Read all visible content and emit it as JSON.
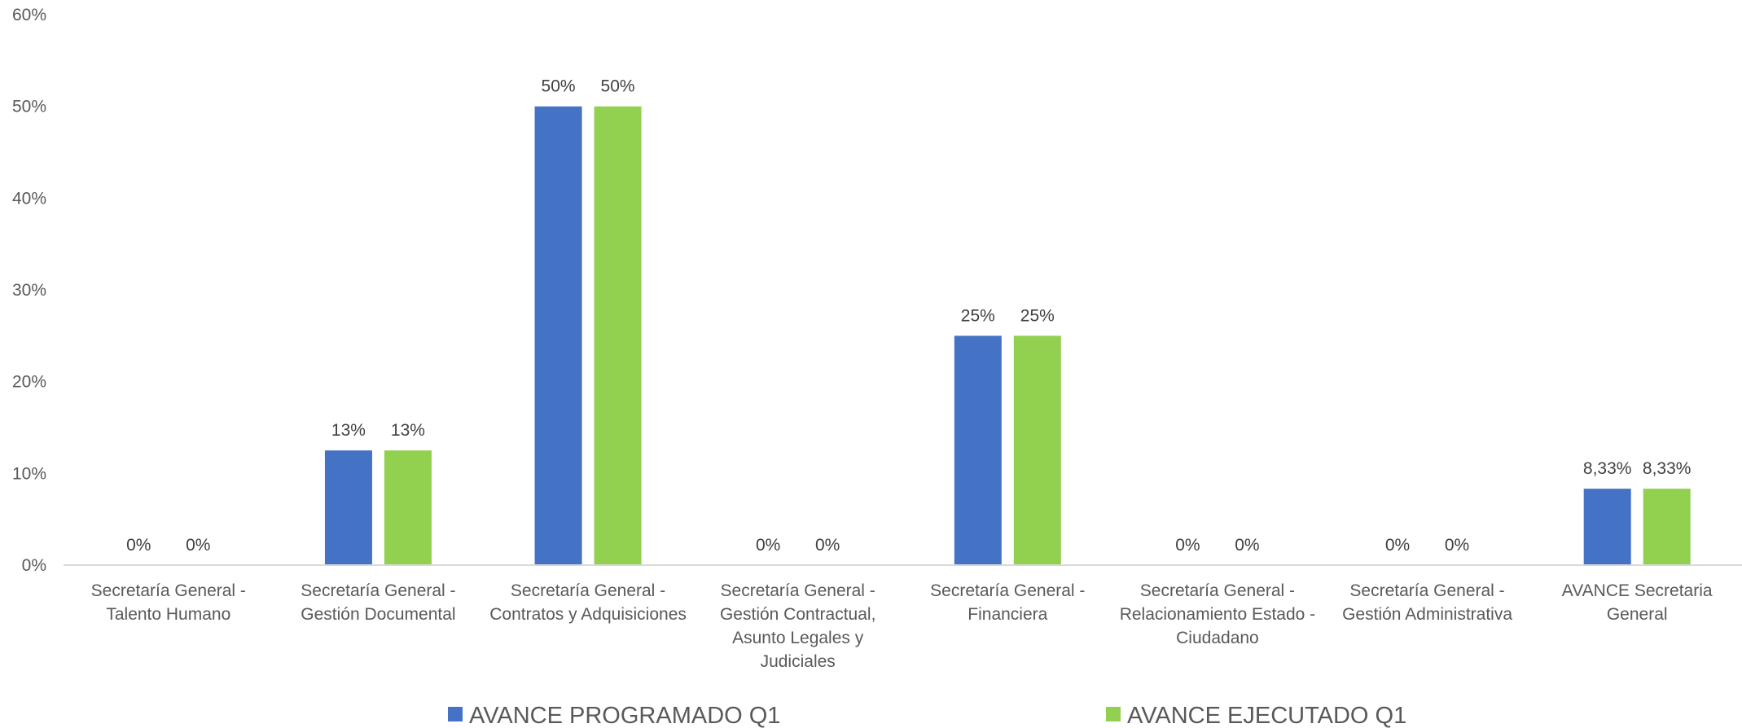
{
  "chart_data": {
    "type": "bar",
    "title": "",
    "xlabel": "",
    "ylabel": "",
    "ylim": [
      0,
      60
    ],
    "yticks": [
      0,
      10,
      20,
      30,
      40,
      50,
      60
    ],
    "ytick_labels": [
      "0%",
      "10%",
      "20%",
      "30%",
      "40%",
      "50%",
      "60%"
    ],
    "grid": false,
    "legend_position": "bottom",
    "categories": [
      [
        "Secretaría General -",
        "Talento Humano"
      ],
      [
        "Secretaría General -",
        "Gestión Documental"
      ],
      [
        "Secretaría General -",
        "Contratos y Adquisiciones"
      ],
      [
        "Secretaría General -",
        "Gestión Contractual,",
        "Asunto Legales y",
        "Judiciales"
      ],
      [
        "Secretaría General -",
        "Financiera"
      ],
      [
        "Secretaría General -",
        "Relacionamiento Estado -",
        "Ciudadano"
      ],
      [
        "Secretaría General -",
        "Gestión Administrativa"
      ],
      [
        "AVANCE Secretaria",
        "General"
      ]
    ],
    "series": [
      {
        "name": "AVANCE PROGRAMADO Q1",
        "color": "#4472C4",
        "values": [
          0,
          12.5,
          50,
          0,
          25,
          0,
          0,
          8.33
        ],
        "labels": [
          "0%",
          "13%",
          "50%",
          "0%",
          "25%",
          "0%",
          "0%",
          "8,33%"
        ]
      },
      {
        "name": "AVANCE EJECUTADO Q1",
        "color": "#92D050",
        "values": [
          0,
          12.5,
          50,
          0,
          25,
          0,
          0,
          8.33
        ],
        "labels": [
          "0%",
          "13%",
          "50%",
          "0%",
          "25%",
          "0%",
          "0%",
          "8,33%"
        ]
      }
    ]
  }
}
